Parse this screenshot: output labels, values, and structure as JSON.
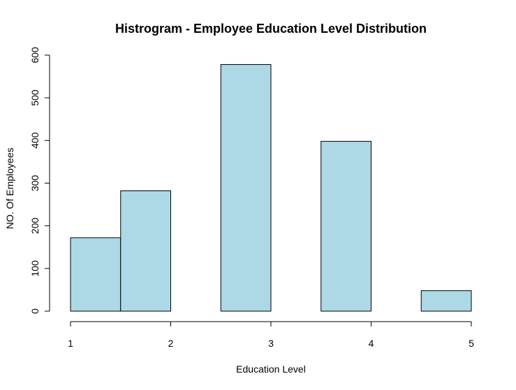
{
  "chart_data": {
    "type": "bar",
    "title": "Histrogram - Employee Education Level Distribution",
    "xlabel": "Education Level",
    "ylabel": "NO. Of Employees",
    "bar_color": "#add8e6",
    "bins": [
      {
        "start": 1.0,
        "end": 1.5,
        "value": 172
      },
      {
        "start": 1.5,
        "end": 2.0,
        "value": 282
      },
      {
        "start": 2.0,
        "end": 2.5,
        "value": 0
      },
      {
        "start": 2.5,
        "end": 3.0,
        "value": 578
      },
      {
        "start": 3.0,
        "end": 3.5,
        "value": 0
      },
      {
        "start": 3.5,
        "end": 4.0,
        "value": 398
      },
      {
        "start": 4.0,
        "end": 4.5,
        "value": 0
      },
      {
        "start": 4.5,
        "end": 5.0,
        "value": 48
      }
    ],
    "xlim": [
      1,
      5
    ],
    "ylim": [
      0,
      600
    ],
    "x_ticks": [
      "1",
      "2",
      "3",
      "4",
      "5"
    ],
    "y_ticks": [
      "0",
      "100",
      "200",
      "300",
      "400",
      "500",
      "600"
    ],
    "grid": false,
    "legend": "none"
  }
}
